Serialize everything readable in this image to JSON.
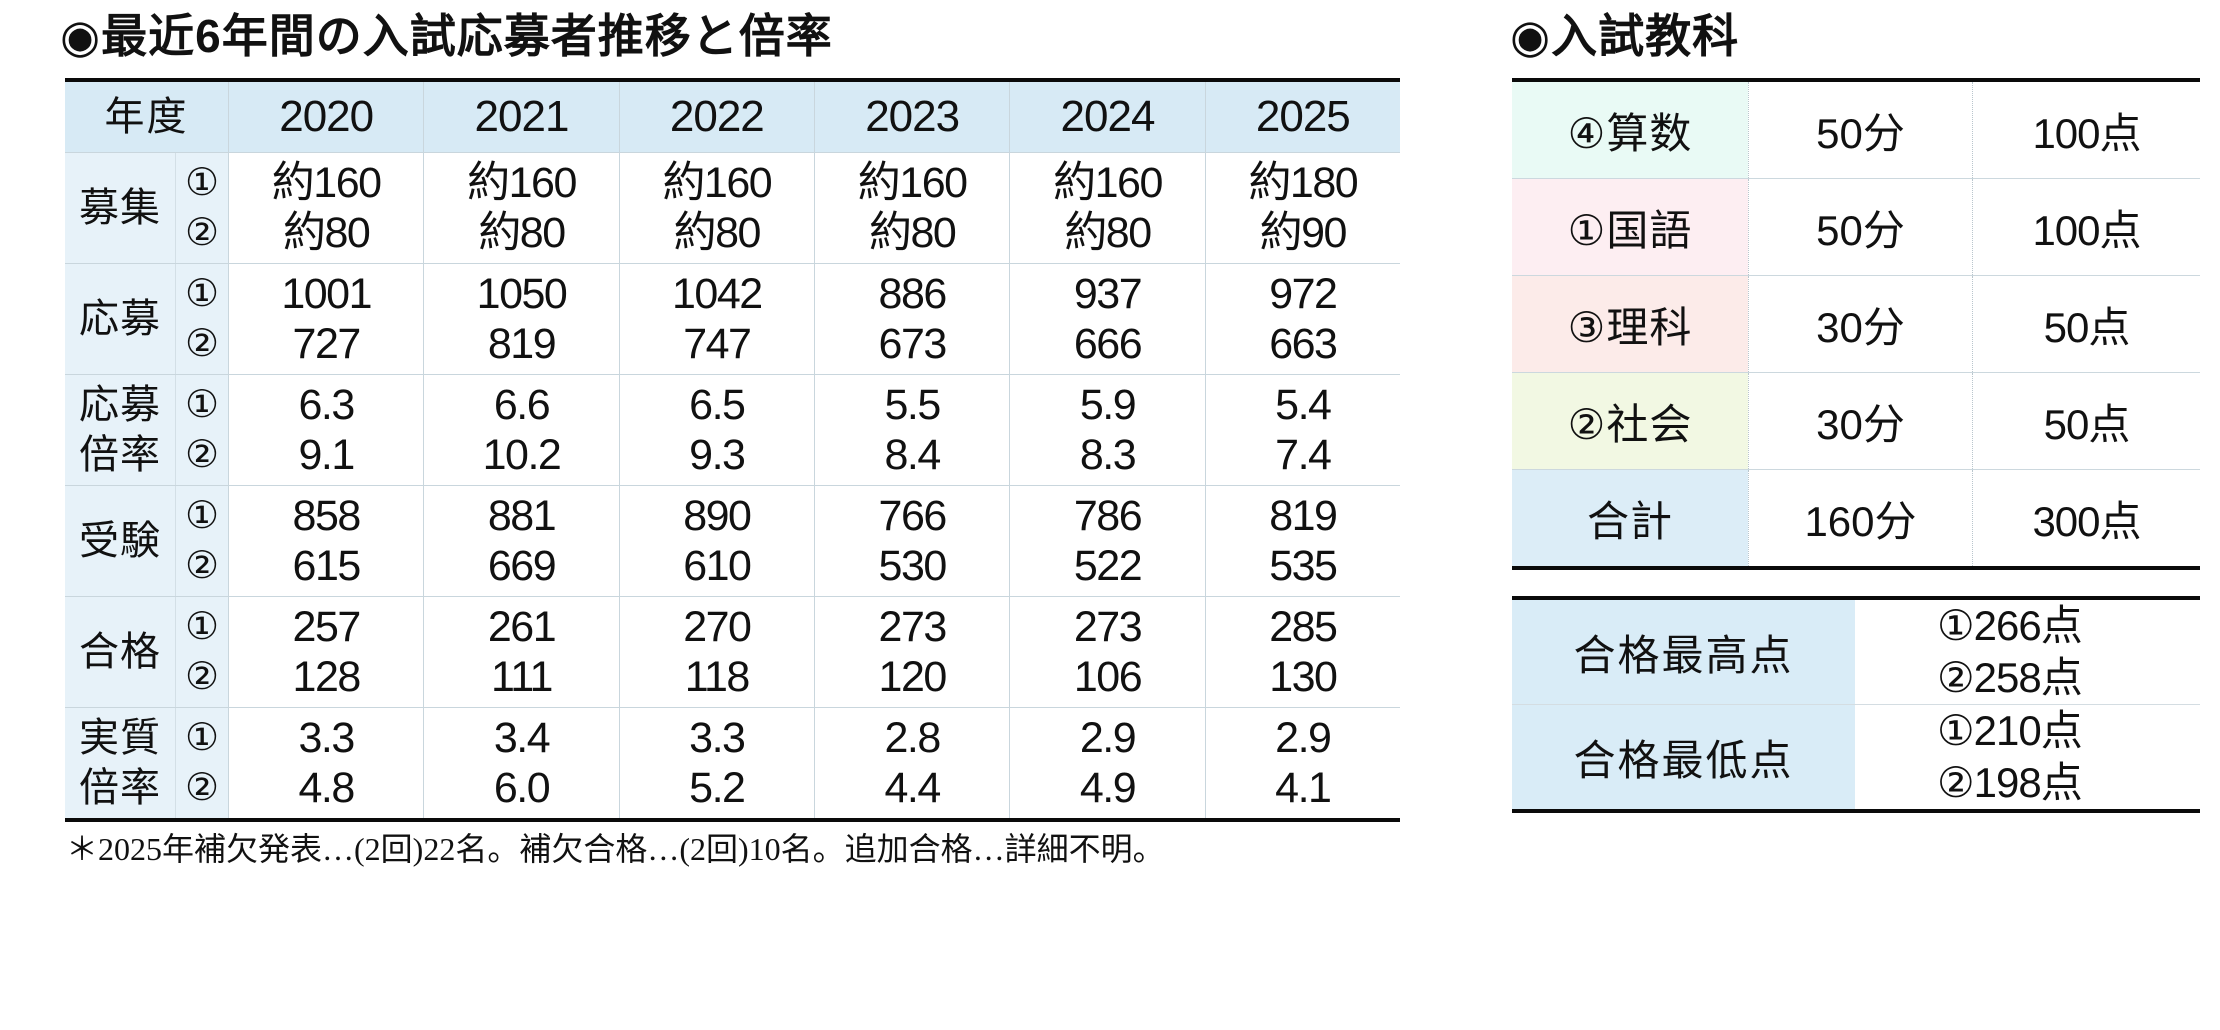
{
  "left_table": {
    "title": "◉最近6年間の入試応募者推移と倍率",
    "year_header": "年度",
    "years": [
      "2020",
      "2021",
      "2022",
      "2023",
      "2024",
      "2025"
    ],
    "round_1": "①",
    "round_2": "②",
    "rows": [
      {
        "label": "募集",
        "values_1": [
          "約160",
          "約160",
          "約160",
          "約160",
          "約160",
          "約180"
        ],
        "values_2": [
          "約80",
          "約80",
          "約80",
          "約80",
          "約80",
          "約90"
        ]
      },
      {
        "label": "応募",
        "values_1": [
          "1001",
          "1050",
          "1042",
          "886",
          "937",
          "972"
        ],
        "values_2": [
          "727",
          "819",
          "747",
          "673",
          "666",
          "663"
        ]
      },
      {
        "label": "応募倍率",
        "values_1": [
          "6.3",
          "6.6",
          "6.5",
          "5.5",
          "5.9",
          "5.4"
        ],
        "values_2": [
          "9.1",
          "10.2",
          "9.3",
          "8.4",
          "8.3",
          "7.4"
        ]
      },
      {
        "label": "受験",
        "values_1": [
          "858",
          "881",
          "890",
          "766",
          "786",
          "819"
        ],
        "values_2": [
          "615",
          "669",
          "610",
          "530",
          "522",
          "535"
        ]
      },
      {
        "label": "合格",
        "values_1": [
          "257",
          "261",
          "270",
          "273",
          "273",
          "285"
        ],
        "values_2": [
          "128",
          "111",
          "118",
          "120",
          "106",
          "130"
        ]
      },
      {
        "label": "実質倍率",
        "values_1": [
          "3.3",
          "3.4",
          "3.3",
          "2.8",
          "2.9",
          "2.9"
        ],
        "values_2": [
          "4.8",
          "6.0",
          "5.2",
          "4.4",
          "4.9",
          "4.1"
        ]
      }
    ],
    "footnote": "＊2025年補欠発表…(2回)22名。補欠合格…(2回)10名。追加合格…詳細不明。"
  },
  "subjects_table": {
    "title": "◉入試教科",
    "rows": [
      {
        "subject": "④算数",
        "time": "50分",
        "points": "100点",
        "bg": "#e9faf5",
        "bg_css": "background-color:#e9faf5"
      },
      {
        "subject": "①国語",
        "time": "50分",
        "points": "100点",
        "bg": "#fdeef2",
        "bg_css": "background-color:#fdeef2"
      },
      {
        "subject": "③理科",
        "time": "30分",
        "points": "50点",
        "bg": "#fcebe9",
        "bg_css": "background-color:#fcebe9"
      },
      {
        "subject": "②社会",
        "time": "30分",
        "points": "50点",
        "bg": "#f2f8e3",
        "bg_css": "background-color:#f2f8e3"
      },
      {
        "subject": "合計",
        "time": "160分",
        "points": "300点",
        "bg": "#dcedf7",
        "bg_css": "background-color:#dcedf7"
      }
    ]
  },
  "scores_table": {
    "rows": [
      {
        "label": "合格最高点",
        "values": [
          "①266点",
          "②258点"
        ]
      },
      {
        "label": "合格最低点",
        "values": [
          "①210点",
          "②198点"
        ]
      }
    ]
  },
  "colors": {
    "header_blue": "#d7eaf5",
    "row_label_blue": "#e7f2f9",
    "score_label_blue": "#d9ecf7",
    "grid_line": "#c9d6dd",
    "heavy_border": "#0a0a0a",
    "page_background": "#ffffff"
  }
}
